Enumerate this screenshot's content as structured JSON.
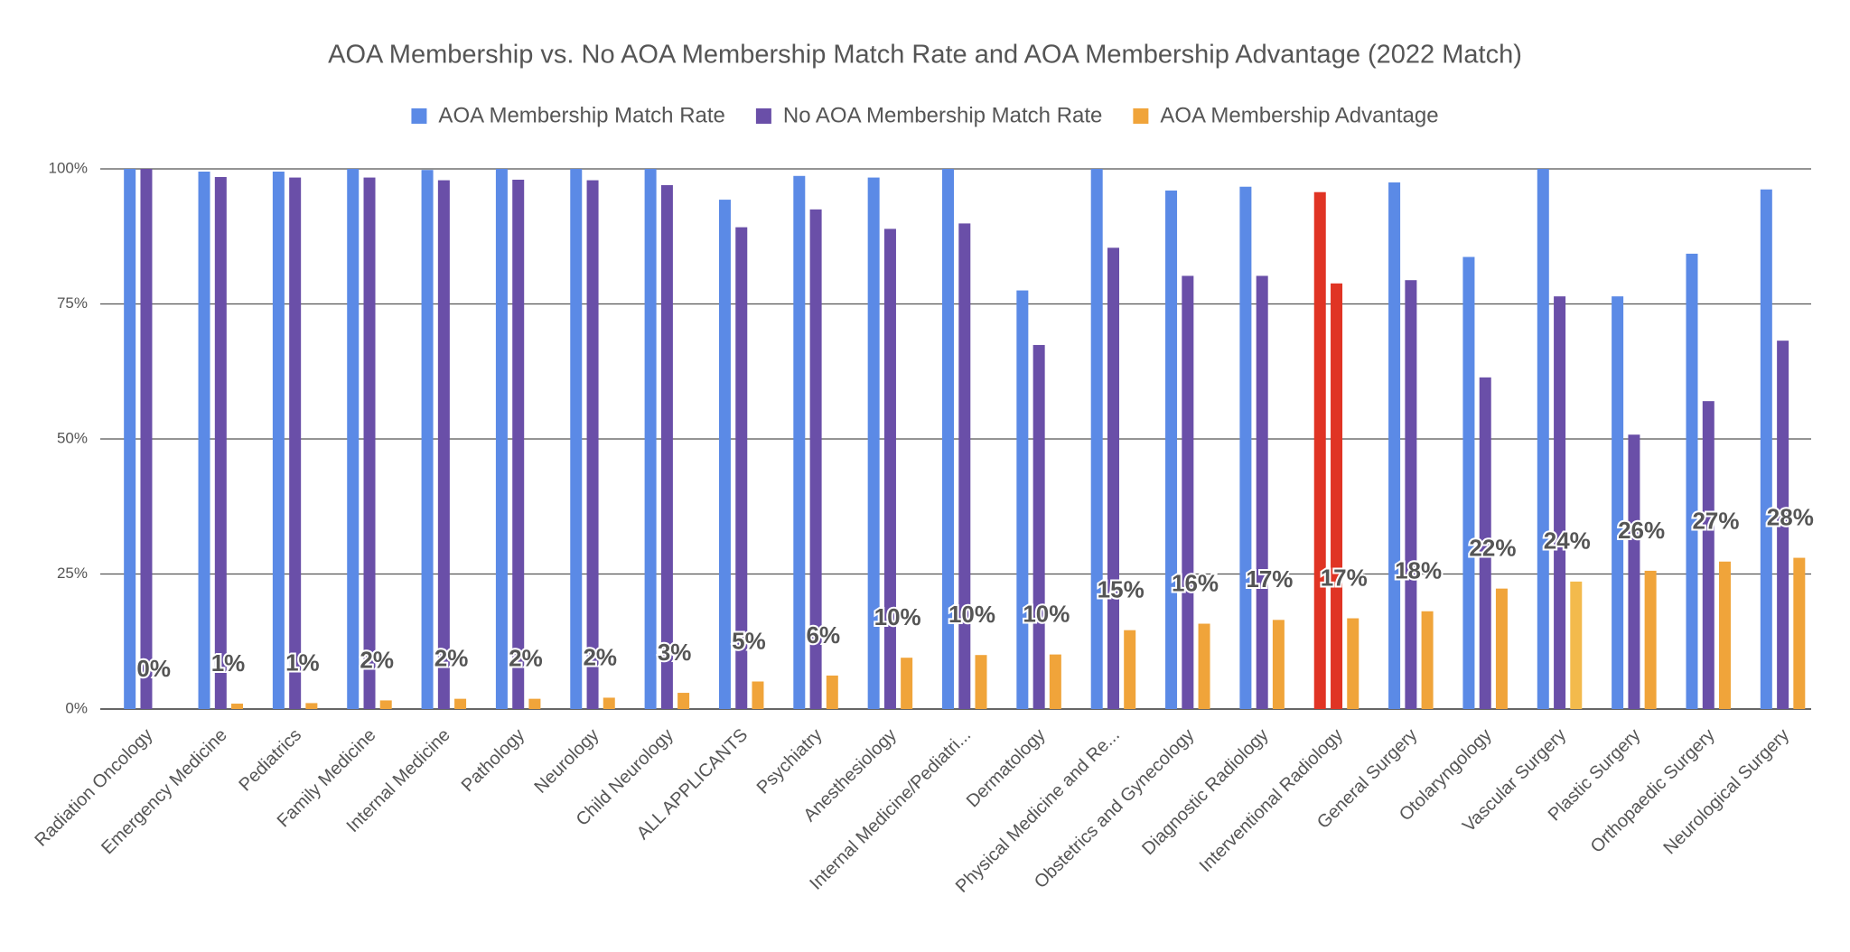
{
  "chart_data": {
    "type": "bar",
    "title": "AOA Membership vs. No AOA Membership Match Rate and AOA Membership Advantage (2022 Match)",
    "categories": [
      "Radiation Oncology",
      "Emergency Medicine",
      "Pediatrics",
      "Family Medicine",
      "Internal Medicine",
      "Pathology",
      "Neurology",
      "Child Neurology",
      "ALL APPLICANTS",
      "Psychiatry",
      "Anesthesiology",
      "Internal Medicine/Pediatri...",
      "Dermatology",
      "Physical Medicine and Re...",
      "Obstetrics and Gynecology",
      "Diagnostic Radiology",
      "Interventional Radiology",
      "General Surgery",
      "Otolaryngology",
      "Vascular Surgery",
      "Plastic Surgery",
      "Orthopaedic Surgery",
      "Neurological Surgery"
    ],
    "series": [
      {
        "name": "AOA Membership Match Rate",
        "color": "#5b8ae6",
        "point_colors": {
          "16": "#e03424"
        },
        "values": [
          100,
          99.5,
          99.5,
          100,
          99.8,
          100,
          100,
          100,
          94.3,
          98.7,
          98.4,
          100,
          77.5,
          100,
          96,
          96.7,
          95.7,
          97.5,
          83.7,
          100,
          76.4,
          84.3,
          96.2
        ]
      },
      {
        "name": "No AOA Membership Match Rate",
        "color": "#6a4fa8",
        "point_colors": {
          "16": "#e03424"
        },
        "values": [
          100,
          98.5,
          98.4,
          98.4,
          97.9,
          98,
          97.9,
          97,
          89.2,
          92.5,
          88.9,
          89.9,
          67.4,
          85.4,
          80.2,
          80.2,
          78.8,
          79.4,
          61.4,
          76.4,
          50.8,
          57,
          68.2
        ]
      },
      {
        "name": "AOA Membership Advantage",
        "color": "#f0a43a",
        "point_colors": {
          "19": "#f3ba4c"
        },
        "values": [
          0,
          1,
          1.1,
          1.6,
          1.9,
          1.9,
          2.1,
          3,
          5.1,
          6.2,
          9.5,
          10,
          10.1,
          14.6,
          15.8,
          16.5,
          16.8,
          18.1,
          22.3,
          23.6,
          25.6,
          27.3,
          28
        ],
        "value_labels": [
          "0%",
          "1%",
          "1%",
          "2%",
          "2%",
          "2%",
          "2%",
          "3%",
          "5%",
          "6%",
          "10%",
          "10%",
          "10%",
          "15%",
          "16%",
          "17%",
          "17%",
          "18%",
          "22%",
          "24%",
          "26%",
          "27%",
          "28%"
        ]
      }
    ],
    "ylim": [
      0,
      100
    ],
    "yticks": [
      {
        "value": 0,
        "label": "0%"
      },
      {
        "value": 25,
        "label": "25%"
      },
      {
        "value": 50,
        "label": "50%"
      },
      {
        "value": 75,
        "label": "75%"
      },
      {
        "value": 100,
        "label": "100%"
      }
    ],
    "grid": true,
    "legend": "top"
  }
}
